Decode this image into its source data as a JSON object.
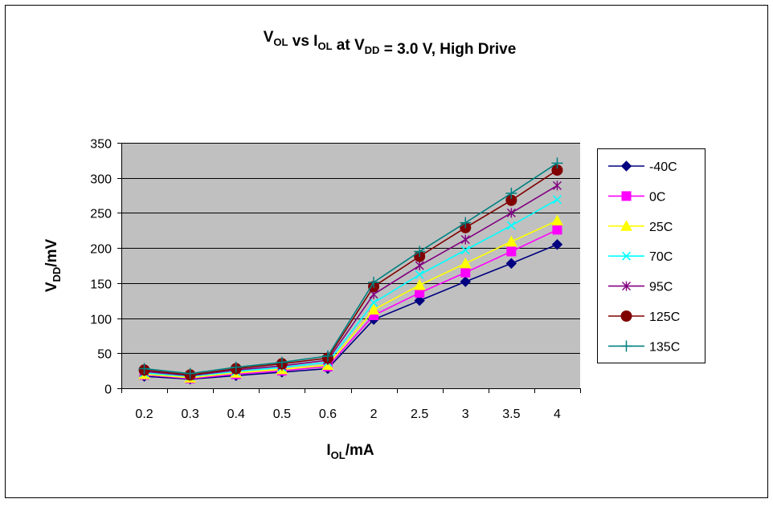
{
  "chart_data": {
    "type": "line",
    "title": {
      "parts": [
        {
          "text": "V",
          "sub": "OL"
        },
        {
          "text": " vs I",
          "sub": "OL"
        },
        {
          "text": " at V",
          "sub": "DD"
        },
        {
          "text": " = 3.0 V, High Drive",
          "sub": ""
        }
      ]
    },
    "xlabel": {
      "main": "I",
      "sub": "OL",
      "tail": "/mA"
    },
    "ylabel": {
      "main": "V",
      "sub": "DD",
      "tail": "/mV"
    },
    "categories": [
      "0.2",
      "0.3",
      "0.4",
      "0.5",
      "0.6",
      "2",
      "2.5",
      "3",
      "3.5",
      "4"
    ],
    "ylim": [
      0,
      350
    ],
    "yticks": [
      0,
      50,
      100,
      150,
      200,
      250,
      300,
      350
    ],
    "grid": true,
    "plot_background": "#c0c0c0",
    "legend_position": "right",
    "series": [
      {
        "name": "-40C",
        "color": "#000080",
        "marker": "diamond",
        "values": [
          17,
          13,
          18,
          23,
          28,
          98,
          125,
          152,
          178,
          205
        ]
      },
      {
        "name": "0C",
        "color": "#ff00ff",
        "marker": "square",
        "values": [
          19,
          14,
          20,
          25,
          31,
          104,
          136,
          165,
          195,
          226
        ]
      },
      {
        "name": "25C",
        "color": "#ffff00",
        "marker": "triangle",
        "values": [
          20,
          15,
          22,
          27,
          33,
          112,
          147,
          178,
          209,
          239
        ]
      },
      {
        "name": "70C",
        "color": "#00ffff",
        "marker": "x",
        "values": [
          22,
          17,
          24,
          30,
          37,
          122,
          162,
          197,
          232,
          269
        ]
      },
      {
        "name": "95C",
        "color": "#800080",
        "marker": "star",
        "values": [
          24,
          18,
          26,
          32,
          40,
          134,
          175,
          212,
          250,
          289
        ]
      },
      {
        "name": "125C",
        "color": "#800000",
        "marker": "circle",
        "values": [
          26,
          19,
          28,
          35,
          43,
          145,
          188,
          229,
          268,
          311
        ]
      },
      {
        "name": "135C",
        "color": "#008080",
        "marker": "plus",
        "values": [
          28,
          21,
          30,
          37,
          46,
          151,
          195,
          236,
          278,
          321
        ]
      }
    ]
  }
}
